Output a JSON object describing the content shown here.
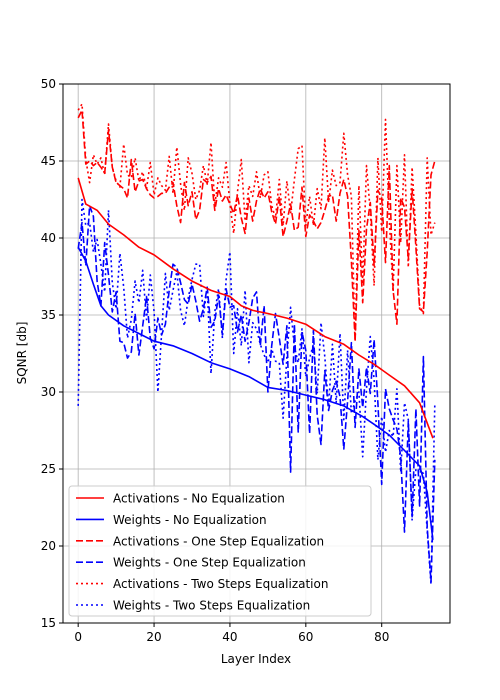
{
  "chart_data": {
    "type": "line",
    "title": "",
    "xlabel": "Layer Index",
    "ylabel": "SQNR [db]",
    "xlim": [
      -4,
      98
    ],
    "ylim": [
      15,
      50
    ],
    "xticks": [
      0,
      20,
      40,
      60,
      80
    ],
    "yticks": [
      15,
      20,
      25,
      30,
      35,
      40,
      45,
      50
    ],
    "grid": true,
    "legend_position": "lower-left",
    "series": [
      {
        "name": "Activations - No Equalization",
        "color": "#ff0000",
        "linestyle": "solid",
        "x": [
          0,
          2,
          5,
          8,
          12,
          16,
          20,
          25,
          30,
          35,
          40,
          43,
          46,
          50,
          55,
          60,
          65,
          70,
          74,
          78,
          82,
          86,
          90,
          93.5
        ],
        "y": [
          43.9,
          42.2,
          41.8,
          40.9,
          40.2,
          39.4,
          38.9,
          38.0,
          37.2,
          36.6,
          36.2,
          35.6,
          35.3,
          35.1,
          34.8,
          34.4,
          33.6,
          33.1,
          32.4,
          31.8,
          31.1,
          30.4,
          29.3,
          27.0
        ]
      },
      {
        "name": "Weights - No Equalization",
        "color": "#0000ff",
        "linestyle": "solid",
        "x": [
          0,
          2,
          4,
          6,
          8,
          12,
          16,
          20,
          25,
          30,
          35,
          40,
          45,
          50,
          55,
          60,
          65,
          70,
          75,
          78,
          82,
          86,
          90,
          92,
          93.5
        ],
        "y": [
          39.4,
          38.5,
          37.0,
          35.6,
          35.0,
          34.3,
          33.8,
          33.3,
          33.0,
          32.5,
          31.9,
          31.5,
          31.0,
          30.3,
          30.1,
          29.8,
          29.5,
          29.1,
          28.4,
          27.9,
          27.2,
          26.2,
          25.2,
          23.5,
          20.4
        ]
      },
      {
        "name": "Activations - One Step Equalization",
        "color": "#ff0000",
        "linestyle": "dashed",
        "x": [
          0,
          1,
          2,
          3,
          4,
          5,
          6,
          7,
          8,
          9,
          10,
          11,
          12,
          13,
          14,
          15,
          16,
          17,
          18,
          19,
          20,
          21,
          22,
          23,
          24,
          25,
          26,
          27,
          28,
          29,
          30,
          31,
          32,
          33,
          34,
          35,
          36,
          37,
          38,
          39,
          40,
          41,
          42,
          43,
          44,
          45,
          46,
          47,
          48,
          49,
          50,
          51,
          52,
          53,
          54,
          55,
          56,
          57,
          58,
          59,
          60,
          61,
          62,
          63,
          64,
          65,
          66,
          67,
          68,
          69,
          70,
          71,
          72,
          73,
          74,
          75,
          76,
          77,
          78,
          79,
          80,
          81,
          82,
          83,
          84,
          85,
          86,
          87,
          88,
          89,
          90,
          91,
          92,
          93,
          94
        ],
        "y": [
          47.8,
          48.3,
          44.8,
          45.0,
          44.7,
          44.9,
          44.6,
          44.2,
          47.0,
          44.6,
          43.6,
          43.4,
          43.2,
          42.6,
          45.1,
          43.0,
          43.7,
          43.8,
          43.2,
          42.8,
          42.6,
          42.7,
          42.9,
          42.9,
          43.3,
          43.6,
          42.1,
          41.0,
          43.6,
          42.1,
          43.0,
          41.2,
          41.8,
          43.8,
          43.6,
          44.0,
          41.8,
          43.2,
          42.4,
          42.8,
          42.2,
          41.6,
          42.8,
          41.3,
          40.3,
          42.6,
          41.1,
          42.4,
          43.2,
          42.6,
          43.0,
          41.7,
          40.9,
          42.7,
          40.1,
          41.1,
          42.2,
          40.5,
          40.7,
          43.3,
          40.1,
          41.5,
          41.1,
          40.6,
          41.0,
          41.8,
          42.7,
          42.8,
          41.1,
          42.9,
          43.8,
          42.7,
          38.5,
          33.3,
          40.5,
          35.8,
          40.6,
          42.3,
          38.2,
          43.1,
          42.6,
          38.4,
          44.7,
          36.6,
          34.4,
          42.6,
          42.0,
          38.6,
          43.2,
          39.4,
          35.4,
          35.2,
          39.1,
          44.1,
          45.0
        ]
      },
      {
        "name": "Weights - One Step Equalization",
        "color": "#0000ff",
        "linestyle": "dashed",
        "x": [
          0,
          1,
          2,
          3,
          4,
          5,
          6,
          7,
          8,
          9,
          10,
          11,
          12,
          13,
          14,
          15,
          16,
          17,
          18,
          19,
          20,
          21,
          22,
          23,
          24,
          25,
          26,
          27,
          28,
          29,
          30,
          31,
          32,
          33,
          34,
          35,
          36,
          37,
          38,
          39,
          40,
          41,
          42,
          43,
          44,
          45,
          46,
          47,
          48,
          49,
          50,
          51,
          52,
          53,
          54,
          55,
          56,
          57,
          58,
          59,
          60,
          61,
          62,
          63,
          64,
          65,
          66,
          67,
          68,
          69,
          70,
          71,
          72,
          73,
          74,
          75,
          76,
          77,
          78,
          79,
          80,
          81,
          82,
          83,
          84,
          85,
          86,
          87,
          88,
          89,
          90,
          91,
          92,
          93,
          94
        ],
        "y": [
          39.3,
          41.0,
          38.2,
          42.1,
          41.4,
          37.2,
          35.6,
          39.7,
          37.6,
          35.2,
          36.5,
          33.3,
          33.2,
          32.2,
          32.6,
          35.1,
          32.4,
          34.3,
          36.2,
          33.5,
          32.8,
          34.8,
          33.7,
          34.4,
          36.6,
          38.3,
          38.1,
          37.1,
          36.0,
          35.7,
          37.0,
          35.9,
          34.6,
          35.4,
          36.8,
          34.2,
          34.6,
          36.3,
          33.7,
          36.7,
          35.5,
          35.6,
          33.9,
          35.0,
          33.3,
          34.5,
          36.1,
          36.5,
          33.0,
          35.6,
          30.0,
          33.0,
          35.1,
          33.5,
          31.8,
          34.3,
          24.8,
          34.4,
          27.4,
          33.9,
          32.7,
          27.3,
          34.0,
          28.5,
          26.6,
          31.4,
          28.8,
          30.1,
          30.7,
          29.7,
          26.3,
          29.4,
          33.2,
          27.7,
          31.5,
          29.0,
          31.6,
          29.9,
          33.4,
          29.3,
          24.0,
          30.2,
          28.9,
          28.2,
          27.6,
          25.8,
          20.9,
          28.1,
          21.9,
          28.9,
          22.6,
          32.3,
          21.2,
          17.7,
          25.6
        ]
      },
      {
        "name": "Activations - Two Steps Equalization",
        "color": "#ff0000",
        "linestyle": "dotted",
        "x": [
          0,
          1,
          2,
          3,
          4,
          5,
          6,
          7,
          8,
          9,
          10,
          11,
          12,
          13,
          14,
          15,
          16,
          17,
          18,
          19,
          20,
          21,
          22,
          23,
          24,
          25,
          26,
          27,
          28,
          29,
          30,
          31,
          32,
          33,
          34,
          35,
          36,
          37,
          38,
          39,
          40,
          41,
          42,
          43,
          44,
          45,
          46,
          47,
          48,
          49,
          50,
          51,
          52,
          53,
          54,
          55,
          56,
          57,
          58,
          59,
          60,
          61,
          62,
          63,
          64,
          65,
          66,
          67,
          68,
          69,
          70,
          71,
          72,
          73,
          74,
          75,
          76,
          77,
          78,
          79,
          80,
          81,
          82,
          83,
          84,
          85,
          86,
          87,
          88,
          89,
          90,
          91,
          92,
          93,
          94
        ],
        "y": [
          48.3,
          48.7,
          45.1,
          43.6,
          45.4,
          44.8,
          45.2,
          44.1,
          47.4,
          44.6,
          43.7,
          43.3,
          46.1,
          44.1,
          43.9,
          45.2,
          43.7,
          44.3,
          43.2,
          44.9,
          42.8,
          43.9,
          43.4,
          43.1,
          45.3,
          42.9,
          45.9,
          43.5,
          41.8,
          45.2,
          44.2,
          42.5,
          43.1,
          44.7,
          43.5,
          46.2,
          42.2,
          43.9,
          43.3,
          44.9,
          42.2,
          40.3,
          43.0,
          45.1,
          41.1,
          43.4,
          42.7,
          44.3,
          42.6,
          44.1,
          44.3,
          42.1,
          41.3,
          43.8,
          40.8,
          43.7,
          41.6,
          43.8,
          45.8,
          46.0,
          40.8,
          42.7,
          40.8,
          43.2,
          41.9,
          46.5,
          42.3,
          44.4,
          43.4,
          43.6,
          46.8,
          44.1,
          42.7,
          33.3,
          43.4,
          37.0,
          44.7,
          41.7,
          36.9,
          45.2,
          40.4,
          47.7,
          41.2,
          36.5,
          44.7,
          39.7,
          45.4,
          38.1,
          44.6,
          40.3,
          35.6,
          35.1,
          45.2,
          40.2,
          41.0
        ]
      },
      {
        "name": "Weights - Two Steps Equalization",
        "color": "#0000ff",
        "linestyle": "dotted",
        "x": [
          0,
          1,
          2,
          3,
          4,
          5,
          6,
          7,
          8,
          9,
          10,
          11,
          12,
          13,
          14,
          15,
          16,
          17,
          18,
          19,
          20,
          21,
          22,
          23,
          24,
          25,
          26,
          27,
          28,
          29,
          30,
          31,
          32,
          33,
          34,
          35,
          36,
          37,
          38,
          39,
          40,
          41,
          42,
          43,
          44,
          45,
          46,
          47,
          48,
          49,
          50,
          51,
          52,
          53,
          54,
          55,
          56,
          57,
          58,
          59,
          60,
          61,
          62,
          63,
          64,
          65,
          66,
          67,
          68,
          69,
          70,
          71,
          72,
          73,
          74,
          75,
          76,
          77,
          78,
          79,
          80,
          81,
          82,
          83,
          84,
          85,
          86,
          87,
          88,
          89,
          90,
          91,
          92,
          93,
          94
        ],
        "y": [
          29.1,
          42.5,
          40.8,
          41.0,
          39.1,
          39.9,
          38.3,
          36.5,
          41.8,
          37.1,
          35.4,
          39.0,
          36.8,
          33.5,
          34.7,
          37.2,
          35.8,
          37.9,
          34.7,
          37.6,
          35.2,
          30.0,
          33.8,
          37.7,
          35.3,
          36.6,
          37.8,
          35.3,
          34.3,
          36.1,
          37.3,
          38.3,
          38.3,
          34.9,
          36.8,
          31.2,
          35.2,
          36.7,
          33.5,
          37.3,
          39.1,
          32.5,
          35.4,
          33.0,
          36.6,
          31.9,
          34.5,
          34.1,
          33.1,
          32.4,
          31.9,
          32.8,
          32.0,
          31.9,
          28.3,
          32.3,
          35.5,
          32.9,
          31.9,
          34.1,
          31.0,
          32.2,
          33.1,
          29.9,
          34.5,
          32.3,
          29.0,
          33.1,
          29.3,
          33.8,
          28.2,
          32.7,
          28.6,
          29.4,
          30.0,
          25.8,
          30.2,
          33.6,
          30.8,
          25.6,
          28.4,
          26.1,
          27.5,
          27.1,
          30.2,
          24.8,
          29.3,
          28.2,
          21.7,
          25.0,
          25.0,
          24.7,
          21.0,
          17.5,
          29.2
        ]
      }
    ]
  }
}
